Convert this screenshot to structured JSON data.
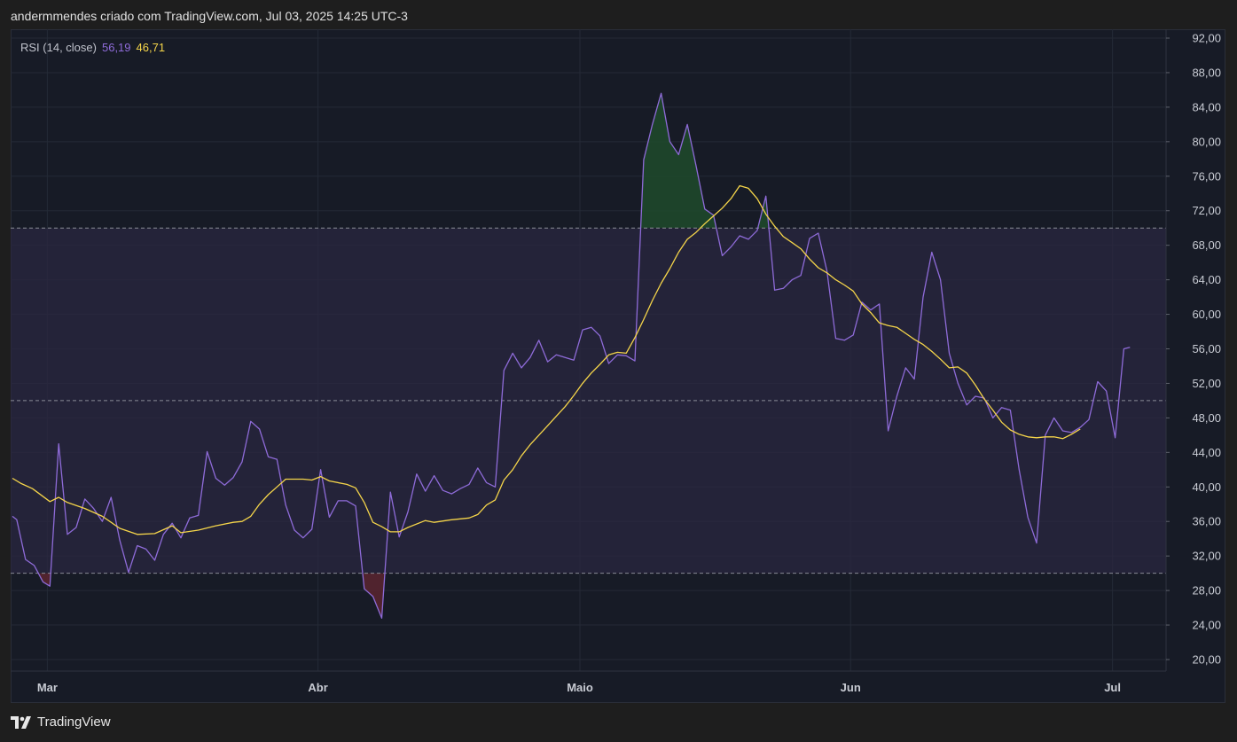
{
  "header": {
    "text": "andermmendes criado com TradingView.com, Jul 03, 2025 14:25 UTC-3"
  },
  "legend": {
    "label": "RSI (14, close)",
    "rsi_value": "56,19",
    "ma_value": "46,71"
  },
  "footer": {
    "brand": "TradingView",
    "logo_icon": "tradingview-logo-icon"
  },
  "colors": {
    "rsi": "#8e6bd8",
    "ma": "#f5d54a",
    "band": "#2a2740",
    "overbought_fill": "#1f4a2b",
    "oversold_fill": "#5a2430",
    "grid": "#242a36",
    "level_line": "#9598a1"
  },
  "chart_data": {
    "type": "line",
    "ylim": [
      20,
      92
    ],
    "y_ticks": [
      "92,00",
      "88,00",
      "84,00",
      "80,00",
      "76,00",
      "72,00",
      "68,00",
      "64,00",
      "60,00",
      "56,00",
      "52,00",
      "48,00",
      "44,00",
      "40,00",
      "36,00",
      "32,00",
      "28,00",
      "24,00",
      "20,00"
    ],
    "y_tick_values": [
      92,
      88,
      84,
      80,
      76,
      72,
      68,
      64,
      60,
      56,
      52,
      48,
      44,
      40,
      36,
      32,
      28,
      24,
      20
    ],
    "levels": {
      "upper": 70,
      "middle": 50,
      "lower": 30
    },
    "months": [
      {
        "label": "Mar",
        "day": 6
      },
      {
        "label": "Abr",
        "day": 37
      },
      {
        "label": "Maio",
        "day": 67
      },
      {
        "label": "Jun",
        "day": 98
      },
      {
        "label": "Jul",
        "day": 128
      }
    ],
    "x_range": [
      2,
      132
    ],
    "series": [
      {
        "name": "RSI",
        "points": [
          [
            2,
            36.6
          ],
          [
            2.5,
            36.2
          ],
          [
            3.5,
            31.6
          ],
          [
            4.5,
            30.9
          ],
          [
            5.5,
            29.0
          ],
          [
            6.3,
            28.5
          ],
          [
            7.3,
            45.0
          ],
          [
            8.3,
            34.5
          ],
          [
            9.3,
            35.3
          ],
          [
            10.3,
            38.6
          ],
          [
            11.3,
            37.5
          ],
          [
            12.3,
            36.0
          ],
          [
            13.3,
            38.8
          ],
          [
            14.3,
            33.8
          ],
          [
            15.3,
            30.1
          ],
          [
            16.3,
            33.2
          ],
          [
            17.3,
            32.8
          ],
          [
            18.3,
            31.5
          ],
          [
            19.3,
            34.5
          ],
          [
            20.3,
            35.8
          ],
          [
            21.3,
            34.1
          ],
          [
            22.3,
            36.4
          ],
          [
            23.3,
            36.7
          ],
          [
            24.3,
            44.1
          ],
          [
            25.3,
            41.0
          ],
          [
            26.3,
            40.2
          ],
          [
            27.3,
            41.1
          ],
          [
            28.3,
            42.9
          ],
          [
            29.3,
            47.6
          ],
          [
            30.3,
            46.7
          ],
          [
            31.3,
            43.5
          ],
          [
            32.3,
            43.2
          ],
          [
            33.3,
            37.9
          ],
          [
            34.3,
            35.0
          ],
          [
            35.3,
            34.1
          ],
          [
            36.3,
            35.1
          ],
          [
            37.3,
            42.0
          ],
          [
            38.3,
            36.5
          ],
          [
            39.3,
            38.4
          ],
          [
            40.3,
            38.4
          ],
          [
            41.3,
            37.8
          ],
          [
            42.3,
            28.2
          ],
          [
            43.3,
            27.3
          ],
          [
            44.3,
            24.8
          ],
          [
            45.3,
            39.4
          ],
          [
            46.3,
            34.2
          ],
          [
            47.3,
            37.1
          ],
          [
            48.3,
            41.5
          ],
          [
            49.3,
            39.5
          ],
          [
            50.3,
            41.3
          ],
          [
            51.3,
            39.6
          ],
          [
            52.3,
            39.2
          ],
          [
            53.3,
            39.8
          ],
          [
            54.3,
            40.3
          ],
          [
            55.3,
            42.2
          ],
          [
            56.3,
            40.5
          ],
          [
            57.3,
            40.0
          ],
          [
            58.3,
            53.5
          ],
          [
            59.3,
            55.5
          ],
          [
            60.3,
            53.8
          ],
          [
            61.3,
            55.0
          ],
          [
            62.3,
            57.0
          ],
          [
            63.3,
            54.5
          ],
          [
            64.3,
            55.3
          ],
          [
            65.3,
            55.0
          ],
          [
            66.3,
            54.7
          ],
          [
            67.3,
            58.2
          ],
          [
            68.3,
            58.5
          ],
          [
            69.3,
            57.5
          ],
          [
            70.3,
            54.3
          ],
          [
            71.3,
            55.3
          ],
          [
            72.3,
            55.2
          ],
          [
            73.3,
            54.6
          ],
          [
            74.3,
            77.9
          ],
          [
            75.3,
            82.0
          ],
          [
            76.3,
            85.6
          ],
          [
            77.3,
            80.0
          ],
          [
            78.3,
            78.5
          ],
          [
            79.3,
            82.0
          ],
          [
            80.3,
            77.2
          ],
          [
            81.3,
            72.2
          ],
          [
            82.3,
            71.5
          ],
          [
            83.3,
            66.8
          ],
          [
            84.3,
            67.8
          ],
          [
            85.3,
            69.1
          ],
          [
            86.3,
            68.7
          ],
          [
            87.3,
            69.7
          ],
          [
            88.3,
            73.7
          ],
          [
            89.3,
            62.8
          ],
          [
            90.3,
            63.0
          ],
          [
            91.3,
            64.0
          ],
          [
            92.3,
            64.5
          ],
          [
            93.3,
            68.8
          ],
          [
            94.3,
            69.4
          ],
          [
            95.3,
            65.0
          ],
          [
            96.3,
            57.2
          ],
          [
            97.3,
            57.0
          ],
          [
            98.3,
            57.6
          ],
          [
            99.3,
            61.4
          ],
          [
            100.3,
            60.5
          ],
          [
            101.3,
            61.2
          ],
          [
            102.3,
            46.5
          ],
          [
            103.3,
            50.5
          ],
          [
            104.3,
            53.8
          ],
          [
            105.3,
            52.5
          ],
          [
            106.3,
            62.0
          ],
          [
            107.3,
            67.2
          ],
          [
            108.3,
            64.0
          ],
          [
            109.3,
            55.5
          ],
          [
            110.3,
            52.0
          ],
          [
            111.3,
            49.5
          ],
          [
            112.3,
            50.5
          ],
          [
            113.3,
            50.3
          ],
          [
            114.3,
            48.0
          ],
          [
            115.3,
            49.2
          ],
          [
            116.3,
            48.9
          ],
          [
            117.3,
            42.0
          ],
          [
            118.3,
            36.5
          ],
          [
            119.3,
            33.5
          ],
          [
            120.3,
            46.0
          ],
          [
            121.3,
            48.0
          ],
          [
            122.3,
            46.5
          ],
          [
            123.3,
            46.3
          ],
          [
            124.3,
            46.9
          ],
          [
            125.3,
            47.8
          ],
          [
            126.3,
            52.2
          ],
          [
            127.3,
            51.1
          ],
          [
            128.3,
            45.7
          ],
          [
            129.3,
            56.0
          ],
          [
            130.0,
            56.19
          ]
        ]
      },
      {
        "name": "MA",
        "points": [
          [
            2,
            41.0
          ],
          [
            3,
            40.4
          ],
          [
            4.3,
            39.8
          ],
          [
            6.3,
            38.3
          ],
          [
            7.3,
            38.8
          ],
          [
            8.3,
            38.2
          ],
          [
            10.3,
            37.5
          ],
          [
            12.3,
            36.6
          ],
          [
            14.3,
            35.2
          ],
          [
            16.3,
            34.5
          ],
          [
            18.3,
            34.6
          ],
          [
            20.3,
            35.5
          ],
          [
            21.3,
            34.7
          ],
          [
            23.3,
            35.0
          ],
          [
            25.3,
            35.5
          ],
          [
            27.3,
            35.9
          ],
          [
            28.3,
            36.0
          ],
          [
            29.3,
            36.6
          ],
          [
            30.3,
            38.0
          ],
          [
            31.3,
            39.1
          ],
          [
            32.3,
            40.0
          ],
          [
            33.3,
            40.9
          ],
          [
            35.3,
            40.9
          ],
          [
            36.3,
            40.8
          ],
          [
            37.3,
            41.2
          ],
          [
            38.3,
            40.7
          ],
          [
            40.3,
            40.3
          ],
          [
            41.3,
            39.9
          ],
          [
            42.3,
            38.2
          ],
          [
            43.3,
            35.9
          ],
          [
            44.3,
            35.4
          ],
          [
            45.3,
            34.8
          ],
          [
            46.3,
            34.8
          ],
          [
            47.3,
            35.3
          ],
          [
            49.3,
            36.1
          ],
          [
            50.3,
            35.9
          ],
          [
            52.3,
            36.2
          ],
          [
            54.3,
            36.4
          ],
          [
            55.3,
            36.8
          ],
          [
            56.3,
            37.9
          ],
          [
            57.3,
            38.5
          ],
          [
            58.3,
            40.8
          ],
          [
            59.3,
            42.0
          ],
          [
            60.3,
            43.6
          ],
          [
            61.3,
            44.9
          ],
          [
            62.3,
            46.0
          ],
          [
            63.3,
            47.1
          ],
          [
            64.3,
            48.2
          ],
          [
            65.3,
            49.3
          ],
          [
            66.3,
            50.6
          ],
          [
            67.3,
            52.0
          ],
          [
            68.3,
            53.2
          ],
          [
            69.3,
            54.2
          ],
          [
            70.3,
            55.3
          ],
          [
            71.3,
            55.6
          ],
          [
            72.3,
            55.5
          ],
          [
            73.3,
            57.3
          ],
          [
            74.3,
            59.4
          ],
          [
            75.3,
            61.6
          ],
          [
            76.3,
            63.6
          ],
          [
            77.3,
            65.3
          ],
          [
            78.3,
            67.2
          ],
          [
            79.3,
            68.7
          ],
          [
            80.3,
            69.5
          ],
          [
            81.3,
            70.5
          ],
          [
            82.3,
            71.4
          ],
          [
            83.3,
            72.3
          ],
          [
            84.3,
            73.4
          ],
          [
            85.3,
            74.9
          ],
          [
            86.3,
            74.6
          ],
          [
            87.3,
            73.4
          ],
          [
            88.3,
            71.6
          ],
          [
            89.3,
            70.2
          ],
          [
            90.3,
            69.0
          ],
          [
            91.3,
            68.3
          ],
          [
            92.3,
            67.6
          ],
          [
            93.3,
            66.4
          ],
          [
            94.3,
            65.4
          ],
          [
            95.3,
            64.8
          ],
          [
            96.3,
            64.0
          ],
          [
            97.3,
            63.4
          ],
          [
            98.3,
            62.7
          ],
          [
            99.3,
            61.2
          ],
          [
            100.3,
            60.2
          ],
          [
            101.3,
            59.0
          ],
          [
            102.3,
            58.7
          ],
          [
            103.3,
            58.5
          ],
          [
            104.3,
            57.8
          ],
          [
            105.3,
            57.1
          ],
          [
            106.3,
            56.5
          ],
          [
            107.3,
            55.7
          ],
          [
            108.3,
            54.8
          ],
          [
            109.3,
            53.8
          ],
          [
            110.3,
            53.9
          ],
          [
            111.3,
            53.2
          ],
          [
            112.3,
            51.8
          ],
          [
            113.3,
            50.2
          ],
          [
            114.3,
            48.9
          ],
          [
            115.3,
            47.5
          ],
          [
            116.3,
            46.6
          ],
          [
            117.3,
            46.1
          ],
          [
            118.3,
            45.8
          ],
          [
            119.3,
            45.7
          ],
          [
            120.3,
            45.8
          ],
          [
            121.3,
            45.8
          ],
          [
            122.3,
            45.6
          ],
          [
            123.3,
            46.1
          ],
          [
            124.3,
            46.71
          ]
        ]
      }
    ]
  }
}
